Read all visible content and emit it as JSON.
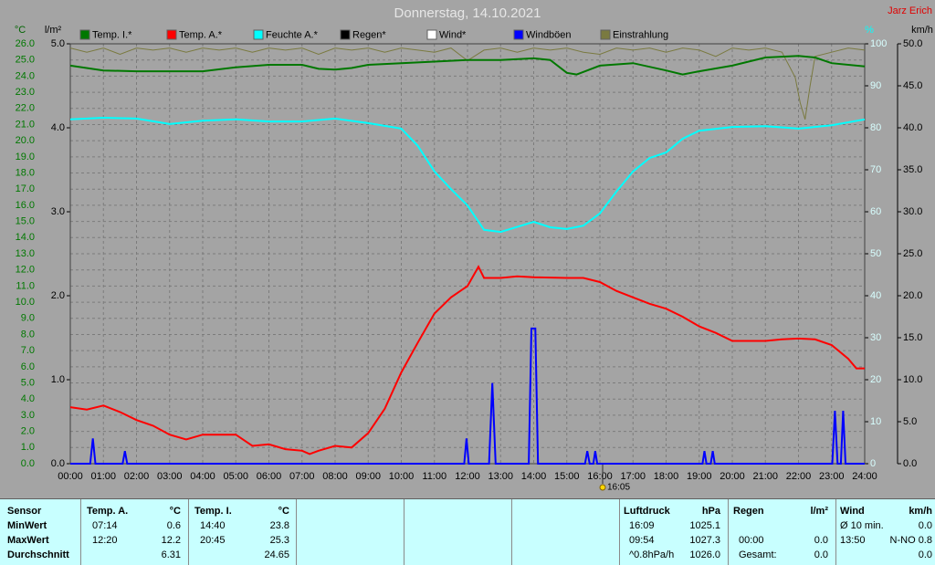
{
  "chart_data": {
    "type": "line",
    "title": "Donnerstag, 14.10.2021",
    "author": "Jarz Erich",
    "xlim": [
      0,
      24
    ],
    "xticks": [
      {
        "value": 0,
        "label": "00:00"
      },
      {
        "value": 1,
        "label": "01:00"
      },
      {
        "value": 2,
        "label": "02:00"
      },
      {
        "value": 3,
        "label": "03:00"
      },
      {
        "value": 4,
        "label": "04:00"
      },
      {
        "value": 5,
        "label": "05:00"
      },
      {
        "value": 6,
        "label": "06:00"
      },
      {
        "value": 7,
        "label": "07:00"
      },
      {
        "value": 8,
        "label": "08:00"
      },
      {
        "value": 9,
        "label": "09:00"
      },
      {
        "value": 10,
        "label": "10:00"
      },
      {
        "value": 11,
        "label": "11:00"
      },
      {
        "value": 12,
        "label": "12:00"
      },
      {
        "value": 13,
        "label": "13:00"
      },
      {
        "value": 14,
        "label": "14:00"
      },
      {
        "value": 15,
        "label": "15:00"
      },
      {
        "value": 16,
        "label": "16:00"
      },
      {
        "value": 17,
        "label": "17:00"
      },
      {
        "value": 18,
        "label": "18:00"
      },
      {
        "value": 19,
        "label": "19:00"
      },
      {
        "value": 20,
        "label": "20:00"
      },
      {
        "value": 21,
        "label": "21:00"
      },
      {
        "value": 22,
        "label": "22:00"
      },
      {
        "value": 23,
        "label": "23:00"
      },
      {
        "value": 24,
        "label": "24:00"
      }
    ],
    "annotation": {
      "x": 16.083,
      "label": "16:05"
    },
    "ylabel": "°C",
    "ylim": [
      0,
      26
    ],
    "yticks": [
      {
        "value": 0,
        "label": "0.0"
      },
      {
        "value": 1,
        "label": "1.0"
      },
      {
        "value": 2,
        "label": "2.0"
      },
      {
        "value": 3,
        "label": "3.0"
      },
      {
        "value": 4,
        "label": "4.0"
      },
      {
        "value": 5,
        "label": "5.0"
      },
      {
        "value": 6,
        "label": "6.0"
      },
      {
        "value": 7,
        "label": "7.0"
      },
      {
        "value": 8,
        "label": "8.0"
      },
      {
        "value": 9,
        "label": "9.0"
      },
      {
        "value": 10,
        "label": "10.0"
      },
      {
        "value": 11,
        "label": "11.0"
      },
      {
        "value": 12,
        "label": "12.0"
      },
      {
        "value": 13,
        "label": "13.0"
      },
      {
        "value": 14,
        "label": "14.0"
      },
      {
        "value": 15,
        "label": "15.0"
      },
      {
        "value": 16,
        "label": "16.0"
      },
      {
        "value": 17,
        "label": "17.0"
      },
      {
        "value": 18,
        "label": "18.0"
      },
      {
        "value": 19,
        "label": "19.0"
      },
      {
        "value": 20,
        "label": "20.0"
      },
      {
        "value": 21,
        "label": "21.0"
      },
      {
        "value": 22,
        "label": "22.0"
      },
      {
        "value": 23,
        "label": "23.0"
      },
      {
        "value": 24,
        "label": "24.0"
      },
      {
        "value": 25,
        "label": "25.0"
      },
      {
        "value": 26,
        "label": "26.0"
      }
    ],
    "y2label": "l/m²",
    "y2lim": [
      0,
      5
    ],
    "y2ticks": [
      {
        "value": 0,
        "label": "0.0"
      },
      {
        "value": 1,
        "label": "1.0"
      },
      {
        "value": 2,
        "label": "2.0"
      },
      {
        "value": 3,
        "label": "3.0"
      },
      {
        "value": 4,
        "label": "4.0"
      },
      {
        "value": 5,
        "label": "5.0"
      }
    ],
    "y3label": "%",
    "y3lim": [
      0,
      100
    ],
    "y3ticks": [
      0,
      10,
      20,
      30,
      40,
      50,
      60,
      70,
      80,
      90,
      100
    ],
    "y4label": "km/h",
    "y4lim": [
      0,
      50
    ],
    "y4ticks": [
      {
        "value": 0,
        "label": "0.0"
      },
      {
        "value": 5,
        "label": "5.0"
      },
      {
        "value": 10,
        "label": "10.0"
      },
      {
        "value": 15,
        "label": "15.0"
      },
      {
        "value": 20,
        "label": "20.0"
      },
      {
        "value": 25,
        "label": "25.0"
      },
      {
        "value": 30,
        "label": "30.0"
      },
      {
        "value": 35,
        "label": "35.0"
      },
      {
        "value": 40,
        "label": "40.0"
      },
      {
        "value": 45,
        "label": "45.0"
      },
      {
        "value": 50,
        "label": "50.0"
      }
    ],
    "grid": true,
    "series": [
      {
        "name": "Temp. I.*",
        "color": "#007800",
        "axis": "y",
        "x": [
          0,
          1,
          2,
          3,
          4,
          5,
          6,
          7,
          7.5,
          8,
          8.5,
          9,
          10,
          11,
          12,
          13,
          14,
          14.5,
          15,
          15.3,
          16,
          17,
          18,
          18.5,
          19,
          20,
          21,
          22,
          22.5,
          23,
          24
        ],
        "values": [
          24.65,
          24.35,
          24.3,
          24.3,
          24.3,
          24.55,
          24.7,
          24.7,
          24.45,
          24.4,
          24.5,
          24.7,
          24.8,
          24.9,
          25.0,
          25.0,
          25.1,
          25.0,
          24.2,
          24.1,
          24.65,
          24.8,
          24.35,
          24.1,
          24.3,
          24.65,
          25.15,
          25.25,
          25.15,
          24.8,
          24.6
        ]
      },
      {
        "name": "Temp. A.*",
        "color": "#ff0000",
        "axis": "y",
        "x": [
          0,
          0.5,
          1,
          1.5,
          2,
          2.5,
          3,
          3.5,
          4,
          4.5,
          5,
          5.5,
          6,
          6.5,
          7,
          7.23,
          7.5,
          8,
          8.5,
          9,
          9.5,
          10,
          10.5,
          11,
          11.5,
          12,
          12.33,
          12.5,
          13,
          13.5,
          14,
          15,
          15.5,
          16,
          16.5,
          17,
          17.5,
          18,
          18.5,
          19,
          19.5,
          20,
          20.5,
          21,
          21.5,
          22,
          22.5,
          23,
          23.5,
          23.75,
          24
        ],
        "values": [
          3.5,
          3.35,
          3.6,
          3.2,
          2.7,
          2.35,
          1.8,
          1.5,
          1.8,
          1.8,
          1.8,
          1.1,
          1.2,
          0.9,
          0.8,
          0.6,
          0.8,
          1.1,
          1.0,
          1.9,
          3.4,
          5.65,
          7.5,
          9.3,
          10.3,
          11.0,
          12.2,
          11.5,
          11.5,
          11.6,
          11.55,
          11.5,
          11.5,
          11.25,
          10.7,
          10.3,
          9.9,
          9.6,
          9.1,
          8.5,
          8.1,
          7.6,
          7.6,
          7.6,
          7.7,
          7.75,
          7.7,
          7.35,
          6.5,
          5.9,
          5.9
        ]
      },
      {
        "name": "Feuchte A.*",
        "color": "#00ffff",
        "axis": "y3",
        "x": [
          0,
          1,
          2,
          3,
          4,
          5,
          6,
          7,
          8,
          9,
          10,
          10.5,
          11,
          11.5,
          12,
          12.5,
          13,
          14,
          14.5,
          15,
          15.5,
          16,
          16.5,
          17,
          17.5,
          18,
          18.5,
          19,
          20,
          21,
          22,
          23,
          24
        ],
        "values": [
          82,
          82.4,
          82.2,
          80.9,
          81.7,
          82,
          81.5,
          81.5,
          82.2,
          81.1,
          79.8,
          75.7,
          69.6,
          65.4,
          61.5,
          55.7,
          55.2,
          57.6,
          56.3,
          55.9,
          56.7,
          59.6,
          64.8,
          69.6,
          72.8,
          74.1,
          77.4,
          79.3,
          80.2,
          80.4,
          79.8,
          80.6,
          82
        ]
      },
      {
        "name": "Regen*",
        "color": "#000000",
        "axis": "y2",
        "x": [],
        "values": []
      },
      {
        "name": "Wind*",
        "color": "#ffffff",
        "axis": "y4",
        "x": [],
        "values": []
      },
      {
        "name": "Windböen",
        "color": "#0000ff",
        "axis": "y4",
        "x": [
          0,
          0.6,
          0.68,
          0.76,
          1.58,
          1.65,
          1.72,
          11.9,
          11.97,
          12.04,
          12.65,
          12.75,
          12.85,
          13.85,
          13.93,
          14.05,
          14.13,
          15.55,
          15.62,
          15.69,
          15.8,
          15.86,
          15.92,
          19.1,
          19.16,
          19.22,
          19.35,
          19.41,
          19.47,
          23.02,
          23.1,
          23.18,
          23.28,
          23.35,
          23.42,
          24
        ],
        "values": [
          0,
          0,
          3,
          0,
          0,
          1.5,
          0,
          0,
          3,
          0,
          0,
          9.6,
          0,
          0,
          16.1,
          16.1,
          0,
          0,
          1.5,
          0,
          0,
          1.5,
          0,
          0,
          1.5,
          0,
          0,
          1.5,
          0,
          0,
          6.3,
          0,
          0,
          6.3,
          0,
          0
        ]
      },
      {
        "name": "Einstrahlung",
        "color": "#7a7a40",
        "axis": "y3",
        "x": [
          0,
          0.5,
          1,
          1.5,
          2,
          2.5,
          3,
          3.5,
          4,
          4.5,
          5,
          5.5,
          6,
          6.5,
          7,
          7.5,
          8,
          8.5,
          9,
          9.5,
          10,
          10.5,
          11,
          11.5,
          12,
          12.5,
          13,
          13.5,
          14,
          14.5,
          15,
          15.5,
          16,
          16.5,
          17,
          17.5,
          18,
          18.5,
          19,
          19.5,
          20,
          20.5,
          21,
          21.5,
          21.9,
          22.05,
          22.2,
          22.35,
          22.5,
          23,
          23.5,
          24
        ],
        "values": [
          99,
          98,
          99,
          97.5,
          99,
          98.5,
          99,
          98,
          99,
          98.5,
          99,
          98,
          99,
          98.5,
          99,
          97.5,
          99,
          98.5,
          99,
          98,
          99,
          98.5,
          98,
          99,
          96,
          98.5,
          99,
          98,
          99,
          98.5,
          99,
          98,
          97.5,
          99,
          98.5,
          99,
          98,
          99,
          98.5,
          97,
          99,
          98.5,
          99,
          98,
          92,
          86,
          82,
          90,
          97,
          98,
          99,
          98.5
        ]
      }
    ]
  },
  "table": {
    "header": [
      "Sensor",
      "Temp. A.",
      "°C",
      "Temp. I.",
      "°C",
      "Luftdruck",
      "hPa",
      "Regen",
      "l/m²",
      "Wind",
      "km/h"
    ],
    "rows": [
      [
        "MinWert",
        "07:14",
        "0.6",
        "14:40",
        "23.8",
        "16:09",
        "1025.1",
        null,
        null,
        "Ø 10 min.",
        "0.0"
      ],
      [
        "MaxWert",
        "12:20",
        "12.2",
        "20:45",
        "25.3",
        "09:54",
        "1027.3",
        "00:00",
        "0.0",
        "13:50",
        "N-NO 0.8"
      ],
      [
        "Durchschnitt",
        null,
        "6.31",
        null,
        "24.65",
        "^0.8hPa/h",
        "1026.0",
        "Gesamt:",
        "0.0",
        null,
        "0.0"
      ]
    ]
  }
}
